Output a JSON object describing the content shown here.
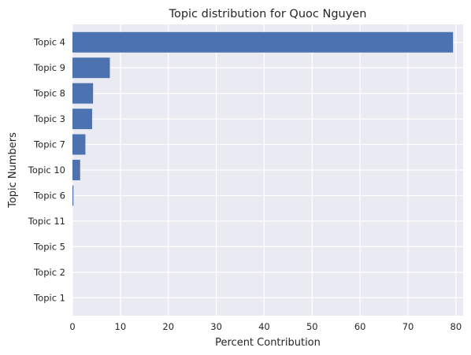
{
  "chart_data": {
    "type": "bar",
    "orientation": "horizontal",
    "title": "Topic distribution for Quoc Nguyen",
    "xlabel": "Percent Contribution",
    "ylabel": "Topic Numbers",
    "categories": [
      "Topic 4",
      "Topic 9",
      "Topic 8",
      "Topic 3",
      "Topic 7",
      "Topic 10",
      "Topic 6",
      "Topic 11",
      "Topic 5",
      "Topic 2",
      "Topic 1"
    ],
    "values": [
      79.4,
      7.8,
      4.3,
      4.1,
      2.7,
      1.6,
      0.2,
      0.0,
      0.0,
      0.0,
      0.0
    ],
    "xlim": [
      0,
      81.5
    ],
    "xticks": [
      0,
      10,
      20,
      30,
      40,
      50,
      60,
      70,
      80
    ],
    "grid": true,
    "colors": {
      "bar": "#4c72b0",
      "plot_background": "#eaeaf2",
      "grid": "#ffffff"
    }
  }
}
